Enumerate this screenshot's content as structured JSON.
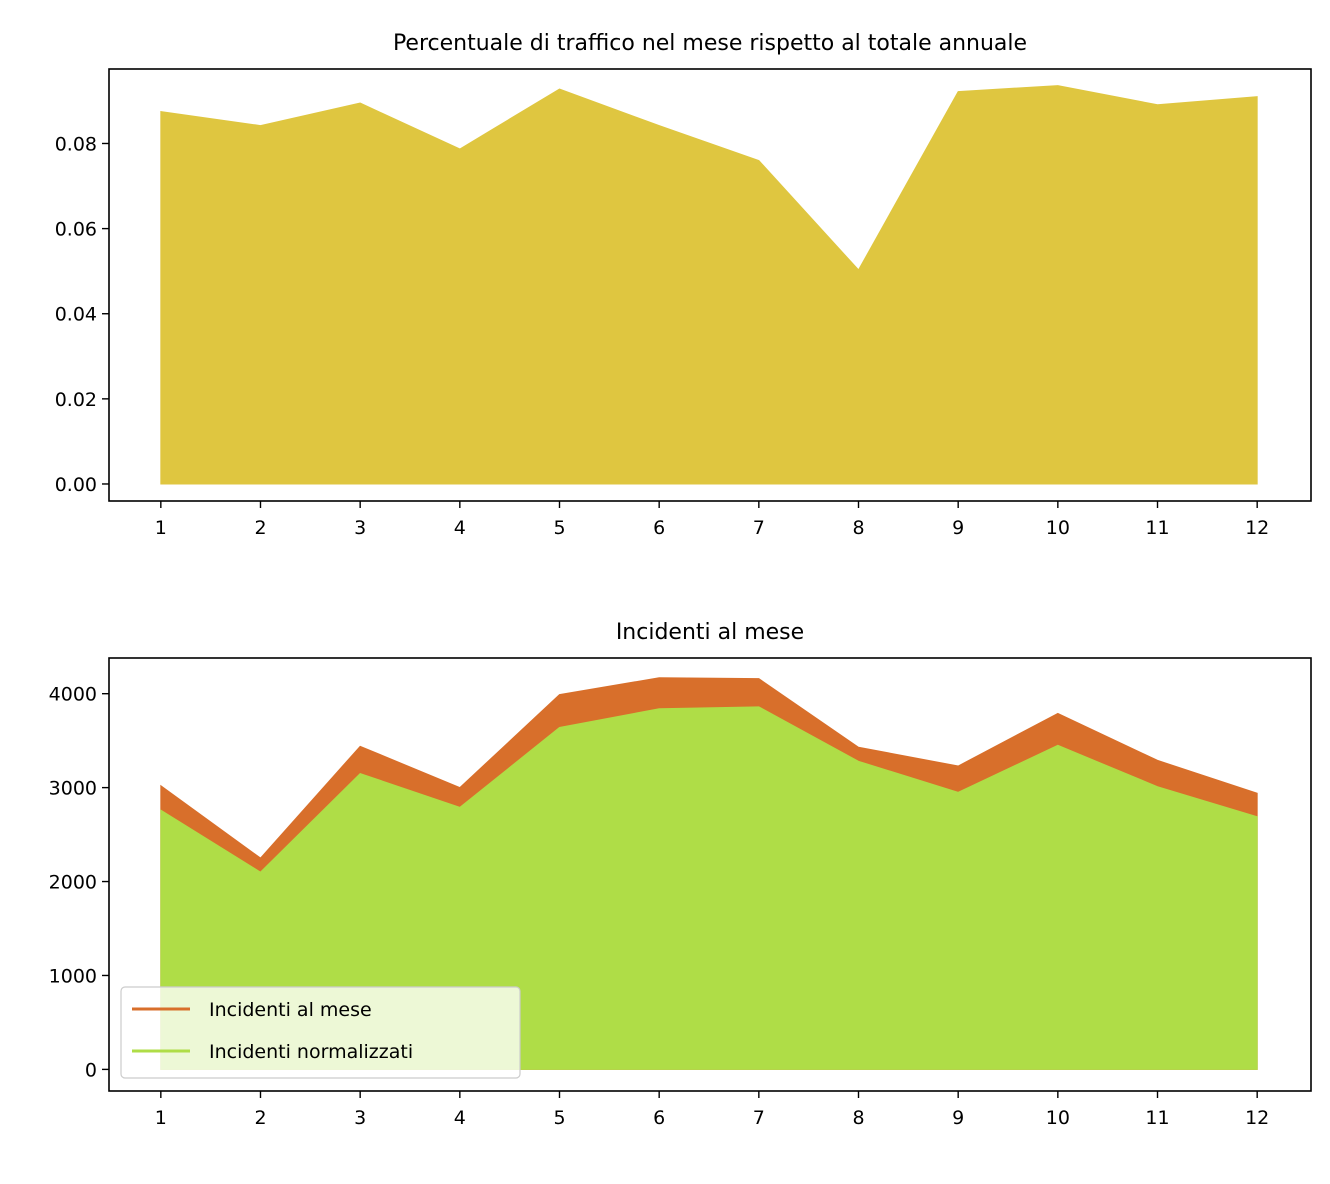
{
  "chart_data": [
    {
      "type": "area",
      "title": "Percentuale di traffico nel mese rispetto al totale annuale",
      "xlabel": "",
      "ylabel": "",
      "x": [
        1,
        2,
        3,
        4,
        5,
        6,
        7,
        8,
        9,
        10,
        11,
        12
      ],
      "x_tick_labels": [
        "1",
        "2",
        "3",
        "4",
        "5",
        "6",
        "7",
        "8",
        "9",
        "10",
        "11",
        "12"
      ],
      "y_tick_labels": [
        "0.00",
        "0.02",
        "0.04",
        "0.06",
        "0.08"
      ],
      "y_ticks": [
        0,
        0.02,
        0.04,
        0.06,
        0.08
      ],
      "ylim": [
        -0.004,
        0.0975
      ],
      "xlim": [
        0.48,
        12.54
      ],
      "series": [
        {
          "values": [
            0.0875,
            0.0842,
            0.0895,
            0.0787,
            0.0928,
            0.0842,
            0.076,
            0.0503,
            0.0922,
            0.0936,
            0.0891,
            0.091
          ],
          "color": "#dfc640"
        }
      ],
      "grid": false
    },
    {
      "type": "area",
      "title": "Incidenti al mese",
      "xlabel": "",
      "ylabel": "",
      "x": [
        1,
        2,
        3,
        4,
        5,
        6,
        7,
        8,
        9,
        10,
        11,
        12
      ],
      "x_tick_labels": [
        "1",
        "2",
        "3",
        "4",
        "5",
        "6",
        "7",
        "8",
        "9",
        "10",
        "11",
        "12"
      ],
      "y_tick_labels": [
        "0",
        "1000",
        "2000",
        "3000",
        "4000"
      ],
      "y_ticks": [
        0,
        1000,
        2000,
        3000,
        4000
      ],
      "ylim": [
        -230,
        4380
      ],
      "xlim": [
        0.48,
        12.54
      ],
      "series": [
        {
          "name": "Incidenti al mese",
          "values": [
            3020,
            2250,
            3440,
            3000,
            3990,
            4170,
            4160,
            3430,
            3230,
            3790,
            3290,
            2940
          ],
          "color": "#d86f2b"
        },
        {
          "name": "Incidenti normalizzati",
          "values": [
            2760,
            2100,
            3150,
            2790,
            3640,
            3840,
            3860,
            3280,
            2950,
            3450,
            3010,
            2690
          ],
          "color": "#afdd47"
        }
      ],
      "legend": "lower left",
      "grid": false
    }
  ]
}
